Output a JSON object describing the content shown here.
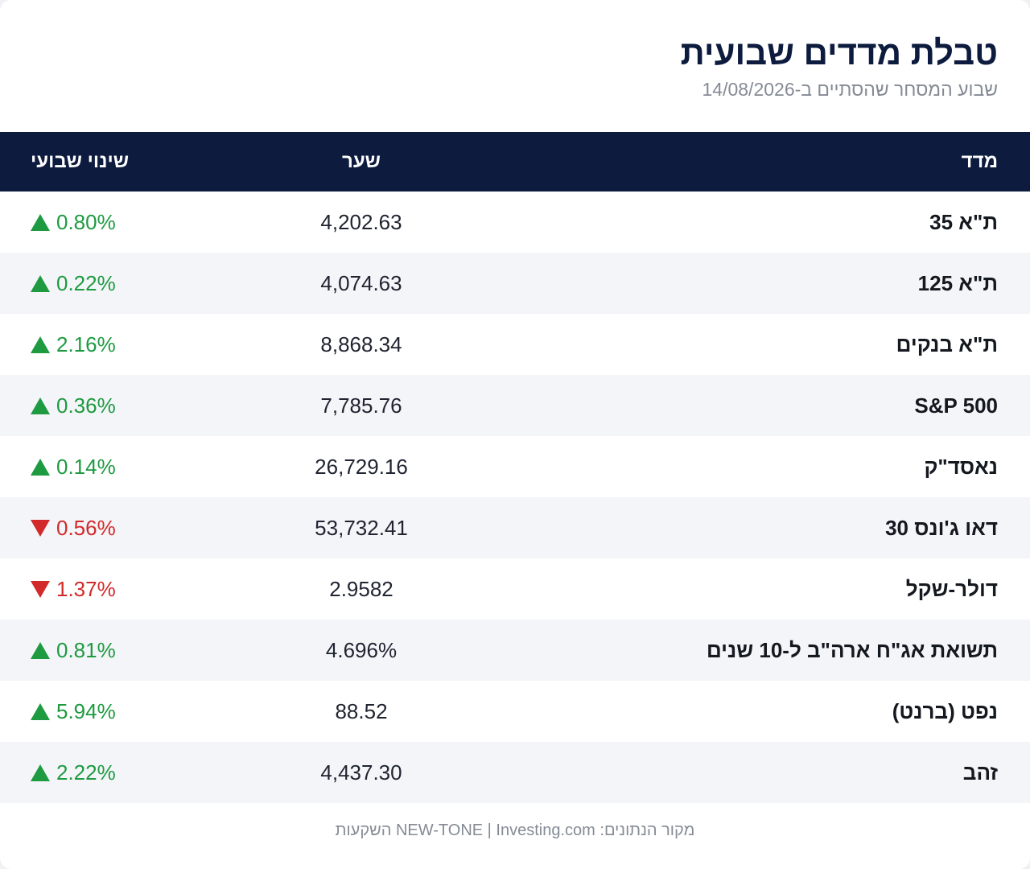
{
  "header": {
    "title": "טבלת מדדים שבועית",
    "subtitle": "שבוע המסחר שהסתיים ב-14/08/2026"
  },
  "table": {
    "columns": {
      "index": "מדד",
      "rate": "שער",
      "change": "שינוי שבועי"
    },
    "rows": [
      {
        "name": "ת\"א 35",
        "rate": "4,202.63",
        "change": "0.80%",
        "direction": "up"
      },
      {
        "name": "ת\"א 125",
        "rate": "4,074.63",
        "change": "0.22%",
        "direction": "up"
      },
      {
        "name": "ת\"א בנקים",
        "rate": "8,868.34",
        "change": "2.16%",
        "direction": "up"
      },
      {
        "name": "S&P 500",
        "rate": "7,785.76",
        "change": "0.36%",
        "direction": "up"
      },
      {
        "name": "נאסד\"ק",
        "rate": "26,729.16",
        "change": "0.14%",
        "direction": "up"
      },
      {
        "name": "דאו ג'ונס 30",
        "rate": "53,732.41",
        "change": "0.56%",
        "direction": "down"
      },
      {
        "name": "דולר-שקל",
        "rate": "2.9582",
        "change": "1.37%",
        "direction": "down"
      },
      {
        "name": "תשואת אג\"ח ארה\"ב ל-10 שנים",
        "rate": "4.696%",
        "change": "0.81%",
        "direction": "up"
      },
      {
        "name": "נפט (ברנט)",
        "rate": "88.52",
        "change": "5.94%",
        "direction": "up"
      },
      {
        "name": "זהב",
        "rate": "4,437.30",
        "change": "2.22%",
        "direction": "up"
      }
    ]
  },
  "footer": {
    "source": "מקור הנתונים: NEW-TONE | Investing.com השקעות"
  },
  "colors": {
    "header_bg": "#0d1b3e",
    "up": "#1e9a41",
    "down": "#d22a2a",
    "alt_row": "#f4f5f9"
  },
  "icons": {
    "up": "triangle-up-icon",
    "down": "triangle-down-icon"
  }
}
